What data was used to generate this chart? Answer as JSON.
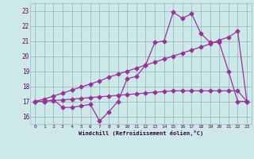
{
  "xlabel": "Windchill (Refroidissement éolien,°C)",
  "xlim": [
    -0.5,
    23.5
  ],
  "ylim": [
    15.5,
    23.5
  ],
  "yticks": [
    16,
    17,
    18,
    19,
    20,
    21,
    22,
    23
  ],
  "xticks": [
    0,
    1,
    2,
    3,
    4,
    5,
    6,
    7,
    8,
    9,
    10,
    11,
    12,
    13,
    14,
    15,
    16,
    17,
    18,
    19,
    20,
    21,
    22,
    23
  ],
  "bg_color": "#cce8e8",
  "line_color": "#993399",
  "grid_color": "#99bbbb",
  "line1_x": [
    0,
    1,
    2,
    3,
    4,
    5,
    6,
    7,
    8,
    9,
    10,
    11,
    12,
    13,
    14,
    15,
    16,
    17,
    18,
    19,
    20,
    21,
    22,
    23
  ],
  "line1_y": [
    17.0,
    17.0,
    17.1,
    16.6,
    16.6,
    16.7,
    16.8,
    15.7,
    16.3,
    17.0,
    18.5,
    18.65,
    19.4,
    20.9,
    21.0,
    22.9,
    22.5,
    22.8,
    21.5,
    20.9,
    20.9,
    19.0,
    17.0,
    17.0
  ],
  "line2_x": [
    0,
    1,
    2,
    3,
    4,
    5,
    6,
    7,
    8,
    9,
    10,
    11,
    12,
    13,
    14,
    15,
    16,
    17,
    18,
    19,
    20,
    21,
    22,
    23
  ],
  "line2_y": [
    17.0,
    17.15,
    17.35,
    17.55,
    17.75,
    17.95,
    18.15,
    18.35,
    18.6,
    18.8,
    19.0,
    19.2,
    19.4,
    19.6,
    19.8,
    20.0,
    20.2,
    20.4,
    20.6,
    20.8,
    21.05,
    21.25,
    21.65,
    17.0
  ],
  "line3_x": [
    0,
    1,
    2,
    3,
    4,
    5,
    6,
    7,
    8,
    9,
    10,
    11,
    12,
    13,
    14,
    15,
    16,
    17,
    18,
    19,
    20,
    21,
    22,
    23
  ],
  "line3_y": [
    17.0,
    17.0,
    17.05,
    17.1,
    17.15,
    17.2,
    17.25,
    17.3,
    17.35,
    17.4,
    17.45,
    17.5,
    17.55,
    17.6,
    17.65,
    17.7,
    17.7,
    17.7,
    17.7,
    17.7,
    17.7,
    17.7,
    17.7,
    17.0
  ]
}
